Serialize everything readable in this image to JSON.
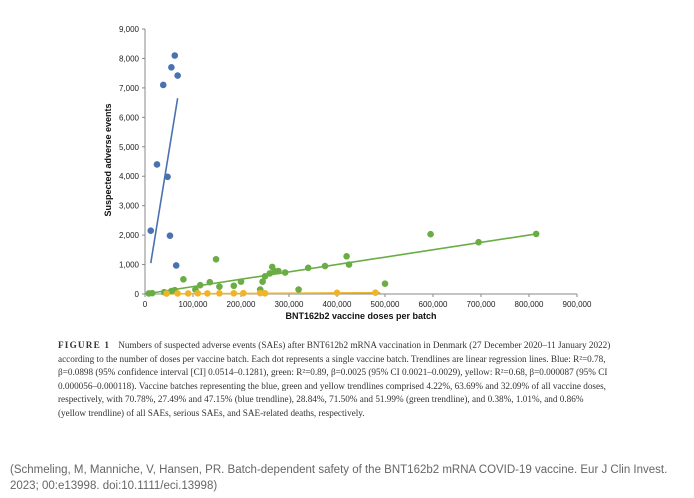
{
  "chart_data": {
    "type": "scatter",
    "xlabel": "BNT162b2 vaccine doses per batch",
    "ylabel": "Suspected adverse events",
    "xlim": [
      0,
      900000
    ],
    "ylim": [
      0,
      9000
    ],
    "x_ticks": [
      "0",
      "100,000",
      "200,000",
      "300,000",
      "400,000",
      "500,000",
      "600,000",
      "700,000",
      "800,000",
      "900,000"
    ],
    "y_ticks": [
      "0",
      "1,000",
      "2,000",
      "3,000",
      "4,000",
      "5,000",
      "6,000",
      "7,000",
      "8,000",
      "9,000"
    ],
    "grid": false,
    "legend": "none",
    "series": [
      {
        "color": "#4a72b0",
        "points": [
          [
            12000,
            2150
          ],
          [
            25000,
            4400
          ],
          [
            38000,
            7100
          ],
          [
            47000,
            3980
          ],
          [
            52000,
            1980
          ],
          [
            55000,
            7700
          ],
          [
            62000,
            8100
          ],
          [
            65000,
            970
          ],
          [
            68000,
            7420
          ]
        ],
        "trendline": [
          [
            12000,
            1050
          ],
          [
            68000,
            6650
          ]
        ]
      },
      {
        "color": "#6aad44",
        "points": [
          [
            8000,
            20
          ],
          [
            15000,
            30
          ],
          [
            40000,
            60
          ],
          [
            55000,
            100
          ],
          [
            62000,
            130
          ],
          [
            80000,
            500
          ],
          [
            105000,
            150
          ],
          [
            115000,
            300
          ],
          [
            135000,
            400
          ],
          [
            148000,
            1180
          ],
          [
            155000,
            250
          ],
          [
            185000,
            280
          ],
          [
            200000,
            420
          ],
          [
            240000,
            150
          ],
          [
            245000,
            420
          ],
          [
            250000,
            600
          ],
          [
            260000,
            700
          ],
          [
            265000,
            920
          ],
          [
            270000,
            780
          ],
          [
            278000,
            780
          ],
          [
            292000,
            730
          ],
          [
            320000,
            150
          ],
          [
            340000,
            890
          ],
          [
            375000,
            950
          ],
          [
            420000,
            1280
          ],
          [
            425000,
            1000
          ],
          [
            500000,
            350
          ],
          [
            595000,
            2030
          ],
          [
            695000,
            1760
          ],
          [
            815000,
            2040
          ]
        ],
        "trendline": [
          [
            0,
            0
          ],
          [
            815000,
            2040
          ]
        ]
      },
      {
        "color": "#f0b429",
        "points": [
          [
            45000,
            15
          ],
          [
            68000,
            20
          ],
          [
            90000,
            18
          ],
          [
            110000,
            25
          ],
          [
            130000,
            20
          ],
          [
            155000,
            22
          ],
          [
            185000,
            25
          ],
          [
            205000,
            28
          ],
          [
            240000,
            30
          ],
          [
            250000,
            25
          ],
          [
            400000,
            40
          ],
          [
            480000,
            45
          ]
        ],
        "trendline": [
          [
            45000,
            4
          ],
          [
            490000,
            43
          ]
        ]
      }
    ]
  },
  "caption": {
    "label": "FIGURE 1",
    "text": "Numbers of suspected adverse events (SAEs) after BNT612b2 mRNA vaccination in Denmark (27 December 2020–11 January 2022) according to the number of doses per vaccine batch. Each dot represents a single vaccine batch. Trendlines are linear regression lines. Blue: R²=0.78, β=0.0898 (95% confidence interval [CI] 0.0514–0.1281), green: R²=0.89, β=0.0025 (95% CI 0.0021–0.0029), yellow: R²=0.68, β=0.000087 (95% CI 0.000056–0.000118). Vaccine batches representing the blue, green and yellow trendlines comprised 4.22%, 63.69% and 32.09% of all vaccine doses, respectively, with 70.78%, 27.49% and 47.15% (blue trendline), 28.84%, 71.50% and 51.99% (green trendline), and 0.38%, 1.01%, and 0.86% (yellow trendline) of all SAEs, serious SAEs, and SAE-related deaths, respectively."
  },
  "citation": "(Schmeling, M, Manniche, V, Hansen, PR. Batch-dependent safety of the BNT162b2 mRNA COVID-19 vaccine. Eur J Clin Invest. 2023; 00:e13998. doi:10.1111/eci.13998)"
}
